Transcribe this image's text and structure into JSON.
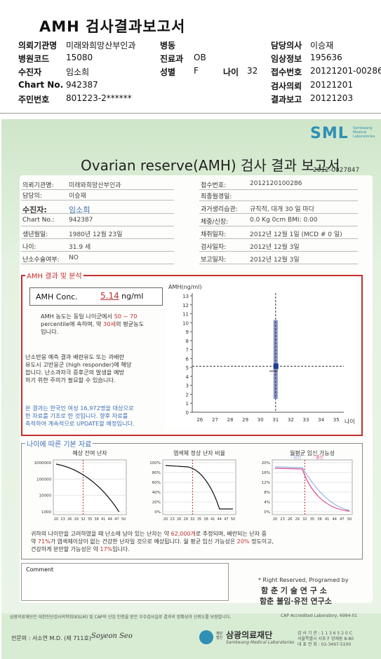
{
  "header": {
    "title": "AMH 검사결과보고서",
    "rows": [
      {
        "l1": "의뢰기관명",
        "v1": "미래와희망산부인과",
        "l2": "병동",
        "v2": "",
        "l3": "담당의사",
        "v3": "이승재"
      },
      {
        "l1": "병원코드",
        "v1": "15080",
        "l2": "진료과",
        "v2": "OB",
        "l3": "임상정보",
        "v3": "195636"
      },
      {
        "l1": "수진자",
        "v1": "임소희",
        "l2": "성별",
        "v2": "F",
        "l2b": "나이",
        "v2b": "32",
        "l3": "접수번호",
        "v3": "20121201-00286"
      },
      {
        "l1": "Chart No.",
        "v1": "942387",
        "l2": "",
        "v2": "",
        "l3": "검사의뢰",
        "v3": "20121201"
      },
      {
        "l1": "주민번호",
        "v1": "801223-2******",
        "l2": "",
        "v2": "",
        "l3": "결과보고",
        "v3": "20121203"
      }
    ]
  },
  "report": {
    "logo": "SML",
    "logo_sub": "Samkwang Medical Laboratories",
    "title": "Ovarian reserve(AMH) 검사 결과 보고서",
    "report_no": "2012-0027847",
    "left_fields": [
      {
        "label": "의뢰기관명:",
        "value": "미래와희망산부인과"
      },
      {
        "label": "담당의:",
        "value": "이승재"
      },
      {
        "label": "수진자:",
        "value": "임소희"
      },
      {
        "label": "Chart No.:",
        "value": "942387"
      },
      {
        "label": "생년월일:",
        "value": "1980년 12월 23일"
      },
      {
        "label": "나이:",
        "value": "31.9 세"
      },
      {
        "label": "난소수술여부:",
        "value": "NO"
      }
    ],
    "right_fields": [
      {
        "label": "접수번호:",
        "value": "2012120100286"
      },
      {
        "label": "최종월경일:",
        "value": ""
      },
      {
        "label": "과거생리습관:",
        "value": "규칙적, 대개   30 일 마다"
      },
      {
        "label": "체중/신장:",
        "value": "0.0 Kg        0cm    BMI:      0.00"
      },
      {
        "label": "채취일자:",
        "value": "2012년 12월 1일  (MCD # 0 일)"
      },
      {
        "label": "검사일자:",
        "value": "2012년 12월 3일"
      },
      {
        "label": "보고일자:",
        "value": "2012년 12월 3일"
      }
    ]
  },
  "amh": {
    "legend": "AMH 결과 및 분석",
    "conc_label": "AMH Conc.",
    "conc_value": "5.14",
    "conc_unit": "ng/ml",
    "note1_a": "AMH 농도는 동일 나이군에서",
    "note1_range": "50 ~ 70",
    "note1_b": "percentile에 속하며, 약",
    "note1_age": "30세",
    "note1_c": "의 평균농도",
    "note1_d": "입니다.",
    "note2": [
      "난소반응 예측 결과 배란유도 또는 과배란",
      "유도시 고반응군 (high responder)에 해당",
      "합니다. 난소과자극 증후군의 발생을 예방",
      "하기 위한 주의가 필요할 수 있습니다."
    ],
    "note3": [
      "본 결과는 한국인 여성 16,972명을 대상으로",
      "한 자료를 기초로 한 것입니다. 향후 자료를",
      "축적하여 계속적으로 UPDATE할 예정입니다."
    ],
    "chart_data": {
      "type": "scatter",
      "title": "",
      "ylabel": "AMH(ng/ml)",
      "xlabel": "나이",
      "x_ticks": [
        26,
        27,
        28,
        29,
        30,
        31,
        32,
        33,
        34,
        35
      ],
      "y_ticks": [
        0,
        1,
        2,
        3,
        4,
        5,
        6,
        7,
        8,
        9,
        10,
        11,
        12,
        13
      ],
      "xlim": [
        25.5,
        35.5
      ],
      "ylim": [
        0,
        13
      ],
      "patient": {
        "x": 31.0,
        "y": 5.14
      },
      "reference_range": {
        "x": 31,
        "low": 1.5,
        "high": 10.3,
        "median": 4.6
      }
    }
  },
  "basic": {
    "legend": "나이에 따른 기본 자료",
    "charts": [
      {
        "title": "예상 잔여 난자",
        "y_ticks": [
          "1000000",
          "100000",
          "10000",
          "1000"
        ],
        "x_ticks": [
          "20",
          "23",
          "26",
          "29",
          "32",
          "35",
          "38",
          "41",
          "44",
          "47",
          "50"
        ]
      },
      {
        "title": "염색체 정상 난자 비율",
        "y_ticks": [
          "100%",
          "80%",
          "60%",
          "40%",
          "20%",
          "0%"
        ],
        "x_ticks": [
          "20",
          "23",
          "26",
          "29",
          "32",
          "35",
          "38",
          "41",
          "44",
          "47",
          "50"
        ]
      },
      {
        "title": "월평균 임신 가능성",
        "series": [
          "임신",
          "출산"
        ],
        "y_ticks": [
          "20%",
          "16%",
          "12%",
          "8%",
          "4%",
          "0%"
        ],
        "x_ticks": [
          "20",
          "23",
          "26",
          "29",
          "32",
          "35",
          "38",
          "41",
          "44",
          "47",
          "50"
        ]
      }
    ],
    "summary_a": "귀하의 나이만을 고려하였을 때 난소에 남아 있는 난자는 약",
    "summary_eggs": "62,000개",
    "summary_b": "로 추정되며, 배란되는 난자 중",
    "summary_c": "약",
    "summary_pct": "71%",
    "summary_d": "가 염색체이상이 없는 건강한 난자일 것으로 예상됩니다. 월 평균 임신 가능성은",
    "summary_preg": "20%",
    "summary_e": "정도이고,",
    "summary_f": "건강하게 분만할 가능성은 약",
    "summary_birth": "17%",
    "summary_g": "입니다."
  },
  "comment": {
    "label": "Comment"
  },
  "credits": {
    "line1": "* Right Reserved, Programed by",
    "line2": "함 춘 기 술 연 구 소",
    "line3": "함춘 불임·유전 연구소"
  },
  "footer": {
    "cert": "삼광의료재단은 대한진단검사의학회(KSLM) 및 CAP의 신임 인증을 받은 우수검사실로 결과의 정확성과 신뢰도를 보장합니다.",
    "cap": "CAP Accredited Laboratory, 6994-01",
    "doctor": "전문의 : 서소연 M.D. (제 711호)",
    "signature": "Soyeon Seo",
    "org_small": "재단법인",
    "org": "삼광의료재단",
    "org_en": "Samkwang Medical Laboratories",
    "addr1": "검 사 기 관 : 1 1 3 6 5 2 0 C",
    "addr2": "서울특별시 서초구 양재동 8-80",
    "tel": "대 표 전 화 : 02-3497-5100"
  }
}
